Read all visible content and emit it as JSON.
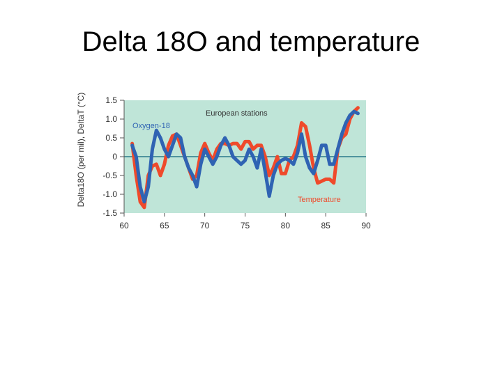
{
  "slide": {
    "title": "Delta 18O and temperature"
  },
  "chart_data": {
    "type": "line",
    "title": "European stations",
    "xlabel": "",
    "ylabel": "Delta18O (per mil), DeltaT (°C)",
    "xlim": [
      60,
      90
    ],
    "ylim": [
      -1.5,
      1.5
    ],
    "x_ticks": [
      "60",
      "65",
      "70",
      "75",
      "80",
      "85",
      "90"
    ],
    "y_ticks": [
      "1.5",
      "1.0",
      "0.5",
      "0",
      "-0.5",
      "-1.0",
      "-1.5"
    ],
    "grid": false,
    "background": "#bfe5d8",
    "zero_line_color": "#2a7a8a",
    "series": [
      {
        "name": "Temperature",
        "color": "#ef4a2b",
        "x": [
          61,
          61.5,
          62,
          62.5,
          63,
          63.5,
          64,
          64.5,
          65,
          65.5,
          66,
          66.5,
          67,
          67.5,
          68,
          68.5,
          69,
          69.5,
          70,
          70.5,
          71,
          71.5,
          72,
          72.5,
          73,
          73.5,
          74,
          74.5,
          75,
          75.5,
          76,
          76.5,
          77,
          77.5,
          78,
          78.5,
          79,
          79.5,
          80,
          80.5,
          81,
          81.5,
          82,
          82.5,
          83,
          83.5,
          84,
          84.5,
          85,
          85.5,
          86,
          86.5,
          87,
          87.5,
          88,
          88.5,
          89
        ],
        "values": [
          0.35,
          -0.5,
          -1.2,
          -1.35,
          -0.5,
          -0.25,
          -0.2,
          -0.5,
          -0.2,
          0.3,
          0.55,
          0.6,
          0.3,
          0.0,
          -0.3,
          -0.6,
          -0.5,
          0.1,
          0.35,
          0.1,
          -0.1,
          0.2,
          0.35,
          0.35,
          0.3,
          0.35,
          0.35,
          0.2,
          0.4,
          0.4,
          0.2,
          0.3,
          0.3,
          0.0,
          -0.5,
          -0.3,
          0.0,
          -0.45,
          -0.45,
          -0.1,
          0.0,
          0.3,
          0.9,
          0.8,
          0.3,
          -0.3,
          -0.7,
          -0.65,
          -0.6,
          -0.6,
          -0.7,
          0.2,
          0.5,
          0.6,
          1.0,
          1.2,
          1.3
        ]
      },
      {
        "name": "Oxygen-18",
        "color": "#2f63b3",
        "x": [
          61,
          61.5,
          62,
          62.5,
          63,
          63.5,
          64,
          64.5,
          65,
          65.5,
          66,
          66.5,
          67,
          67.5,
          68,
          68.5,
          69,
          69.5,
          70,
          70.5,
          71,
          71.5,
          72,
          72.5,
          73,
          73.5,
          74,
          74.5,
          75,
          75.5,
          76,
          76.5,
          77,
          77.5,
          78,
          78.5,
          79,
          79.5,
          80,
          80.5,
          81,
          81.5,
          82,
          82.5,
          83,
          83.5,
          84,
          84.5,
          85,
          85.5,
          86,
          86.5,
          87,
          87.5,
          88,
          88.5,
          89
        ],
        "values": [
          0.3,
          0.0,
          -0.8,
          -1.2,
          -0.8,
          0.2,
          0.7,
          0.5,
          0.2,
          0.0,
          0.3,
          0.6,
          0.5,
          0.0,
          -0.3,
          -0.5,
          -0.8,
          -0.2,
          0.2,
          0.0,
          -0.2,
          0.0,
          0.3,
          0.5,
          0.3,
          0.0,
          -0.1,
          -0.2,
          -0.1,
          0.2,
          0.0,
          -0.3,
          0.2,
          -0.4,
          -1.05,
          -0.5,
          -0.2,
          -0.1,
          -0.05,
          -0.1,
          -0.2,
          0.1,
          0.6,
          0.0,
          -0.3,
          -0.45,
          -0.1,
          0.3,
          0.3,
          -0.2,
          -0.2,
          0.2,
          0.6,
          0.9,
          1.1,
          1.2,
          1.15
        ]
      }
    ]
  }
}
